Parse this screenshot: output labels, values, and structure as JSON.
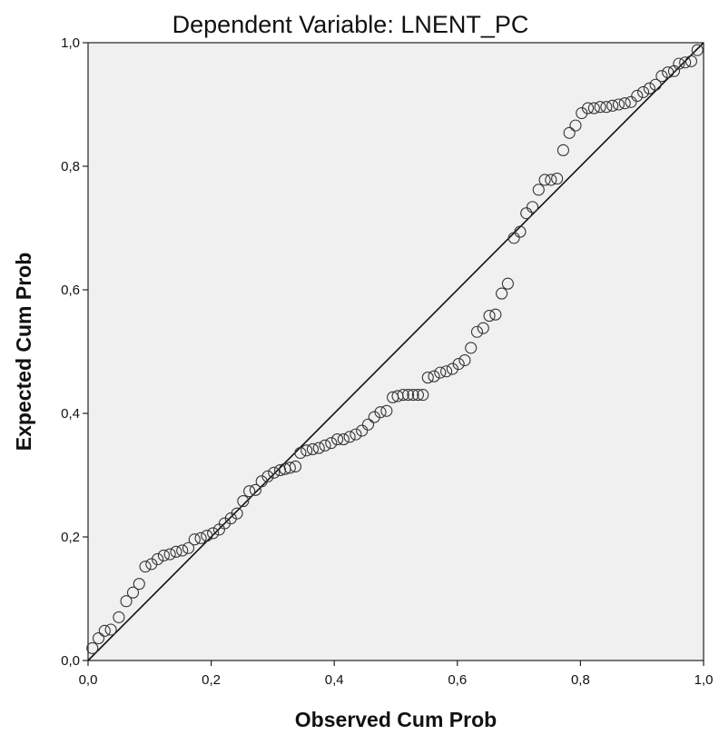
{
  "chart_data": {
    "type": "scatter",
    "title": "Dependent Variable: LNENT_PC",
    "xlabel": "Observed Cum Prob",
    "ylabel": "Expected Cum Prob",
    "xlim": [
      0,
      1
    ],
    "ylim": [
      0,
      1
    ],
    "x_ticks": [
      "0,0",
      "0,2",
      "0,4",
      "0,6",
      "0,8",
      "1,0"
    ],
    "y_ticks": [
      "0,0",
      "0,2",
      "0,4",
      "0,6",
      "0,8",
      "1,0"
    ],
    "grid": false,
    "legend": "none",
    "reference_line": [
      [
        0,
        0
      ],
      [
        1,
        1
      ]
    ],
    "colors": {
      "plot_background": "#f0f0f0",
      "marker_stroke": "#333333",
      "line": "#111111"
    },
    "points": [
      [
        0.007,
        0.02
      ],
      [
        0.017,
        0.036
      ],
      [
        0.027,
        0.048
      ],
      [
        0.037,
        0.05
      ],
      [
        0.05,
        0.07
      ],
      [
        0.062,
        0.096
      ],
      [
        0.073,
        0.11
      ],
      [
        0.083,
        0.124
      ],
      [
        0.093,
        0.152
      ],
      [
        0.103,
        0.156
      ],
      [
        0.113,
        0.164
      ],
      [
        0.123,
        0.17
      ],
      [
        0.133,
        0.172
      ],
      [
        0.143,
        0.176
      ],
      [
        0.153,
        0.178
      ],
      [
        0.163,
        0.182
      ],
      [
        0.173,
        0.196
      ],
      [
        0.183,
        0.198
      ],
      [
        0.193,
        0.202
      ],
      [
        0.203,
        0.206
      ],
      [
        0.213,
        0.212
      ],
      [
        0.222,
        0.222
      ],
      [
        0.232,
        0.23
      ],
      [
        0.242,
        0.238
      ],
      [
        0.252,
        0.258
      ],
      [
        0.262,
        0.274
      ],
      [
        0.272,
        0.276
      ],
      [
        0.282,
        0.29
      ],
      [
        0.292,
        0.298
      ],
      [
        0.302,
        0.304
      ],
      [
        0.312,
        0.308
      ],
      [
        0.32,
        0.31
      ],
      [
        0.328,
        0.312
      ],
      [
        0.337,
        0.314
      ],
      [
        0.345,
        0.336
      ],
      [
        0.355,
        0.34
      ],
      [
        0.365,
        0.342
      ],
      [
        0.375,
        0.344
      ],
      [
        0.385,
        0.348
      ],
      [
        0.395,
        0.352
      ],
      [
        0.405,
        0.358
      ],
      [
        0.415,
        0.358
      ],
      [
        0.425,
        0.362
      ],
      [
        0.435,
        0.366
      ],
      [
        0.445,
        0.372
      ],
      [
        0.455,
        0.382
      ],
      [
        0.465,
        0.394
      ],
      [
        0.475,
        0.402
      ],
      [
        0.485,
        0.404
      ],
      [
        0.495,
        0.426
      ],
      [
        0.503,
        0.428
      ],
      [
        0.512,
        0.43
      ],
      [
        0.52,
        0.43
      ],
      [
        0.528,
        0.43
      ],
      [
        0.536,
        0.43
      ],
      [
        0.544,
        0.43
      ],
      [
        0.552,
        0.458
      ],
      [
        0.562,
        0.46
      ],
      [
        0.572,
        0.466
      ],
      [
        0.582,
        0.468
      ],
      [
        0.592,
        0.472
      ],
      [
        0.602,
        0.48
      ],
      [
        0.612,
        0.486
      ],
      [
        0.622,
        0.506
      ],
      [
        0.632,
        0.532
      ],
      [
        0.642,
        0.538
      ],
      [
        0.652,
        0.558
      ],
      [
        0.662,
        0.56
      ],
      [
        0.672,
        0.594
      ],
      [
        0.682,
        0.61
      ],
      [
        0.692,
        0.684
      ],
      [
        0.702,
        0.694
      ],
      [
        0.712,
        0.724
      ],
      [
        0.722,
        0.734
      ],
      [
        0.732,
        0.762
      ],
      [
        0.742,
        0.778
      ],
      [
        0.752,
        0.778
      ],
      [
        0.762,
        0.78
      ],
      [
        0.772,
        0.826
      ],
      [
        0.782,
        0.854
      ],
      [
        0.792,
        0.866
      ],
      [
        0.802,
        0.886
      ],
      [
        0.812,
        0.894
      ],
      [
        0.822,
        0.894
      ],
      [
        0.832,
        0.896
      ],
      [
        0.842,
        0.896
      ],
      [
        0.852,
        0.898
      ],
      [
        0.862,
        0.9
      ],
      [
        0.872,
        0.902
      ],
      [
        0.882,
        0.904
      ],
      [
        0.892,
        0.914
      ],
      [
        0.902,
        0.92
      ],
      [
        0.912,
        0.926
      ],
      [
        0.922,
        0.932
      ],
      [
        0.932,
        0.946
      ],
      [
        0.942,
        0.952
      ],
      [
        0.952,
        0.954
      ],
      [
        0.96,
        0.966
      ],
      [
        0.97,
        0.968
      ],
      [
        0.98,
        0.97
      ],
      [
        0.99,
        0.988
      ]
    ]
  }
}
